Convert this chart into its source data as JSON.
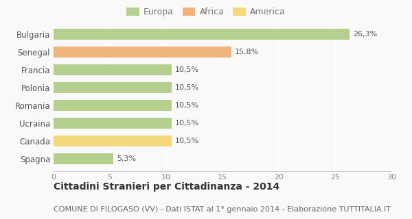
{
  "categories": [
    "Spagna",
    "Canada",
    "Ucraina",
    "Romania",
    "Polonia",
    "Francia",
    "Senegal",
    "Bulgaria"
  ],
  "values": [
    5.3,
    10.5,
    10.5,
    10.5,
    10.5,
    10.5,
    15.8,
    26.3
  ],
  "labels": [
    "5,3%",
    "10,5%",
    "10,5%",
    "10,5%",
    "10,5%",
    "10,5%",
    "15,8%",
    "26,3%"
  ],
  "colors": [
    "#b5cf8f",
    "#f5d87a",
    "#b5cf8f",
    "#b5cf8f",
    "#b5cf8f",
    "#b5cf8f",
    "#f0b47a",
    "#b5cf8f"
  ],
  "legend": [
    {
      "label": "Europa",
      "color": "#b5cf8f"
    },
    {
      "label": "Africa",
      "color": "#f0b47a"
    },
    {
      "label": "America",
      "color": "#f5d87a"
    }
  ],
  "xlim": [
    0,
    30
  ],
  "xticks": [
    0,
    5,
    10,
    15,
    20,
    25,
    30
  ],
  "title": "Cittadini Stranieri per Cittadinanza - 2014",
  "subtitle": "COMUNE DI FILOGASO (VV) - Dati ISTAT al 1° gennaio 2014 - Elaborazione TUTTITALIA.IT",
  "title_fontsize": 10,
  "subtitle_fontsize": 8,
  "bg_color": "#f9f9f9",
  "grid_color": "#ffffff",
  "bar_height": 0.6
}
